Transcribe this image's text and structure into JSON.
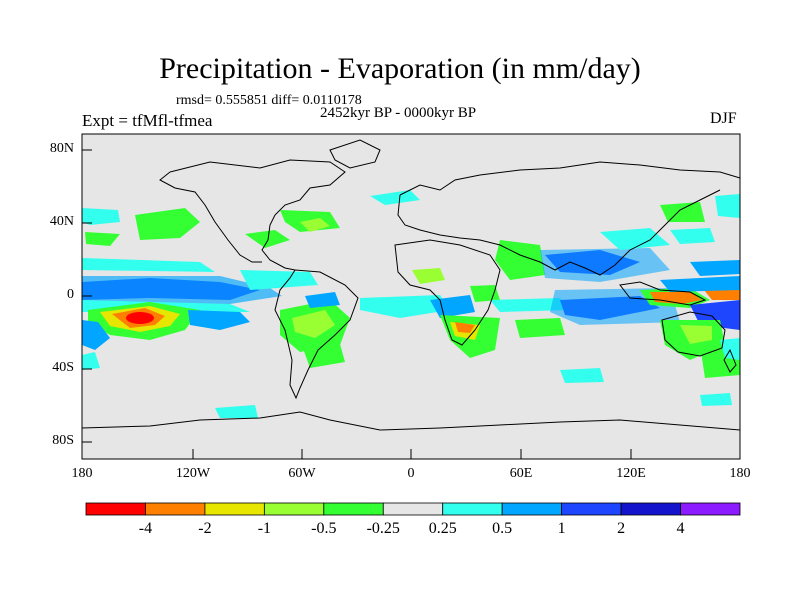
{
  "title": "Precipitation - Evaporation (in mm/day)",
  "stats": "rmsd= 0.555851 diff= 0.0110178",
  "experiment": "Expt = tfMfl-tfmea",
  "period": "2452kyr BP - 0000kyr BP",
  "season": "DJF",
  "axes": {
    "y_labels": [
      "80N",
      "40N",
      "0",
      "40S",
      "80S"
    ],
    "x_labels": [
      "180",
      "120W",
      "60W",
      "0",
      "60E",
      "120E",
      "180"
    ]
  },
  "colorbar": {
    "labels": [
      "-4",
      "-2",
      "-1",
      "-0.5",
      "-0.25",
      "0.25",
      "0.5",
      "1",
      "2",
      "4"
    ],
    "colors": [
      "#ff0000",
      "#ff8000",
      "#e6e600",
      "#99ff33",
      "#33ff33",
      "#e6e6e6",
      "#33ffee",
      "#00a6ff",
      "#1f46ff",
      "#1414cc",
      "#8c1cff"
    ]
  },
  "colors": {
    "land_ocean_background": "#e6e6e6",
    "coastline": "#000000"
  }
}
